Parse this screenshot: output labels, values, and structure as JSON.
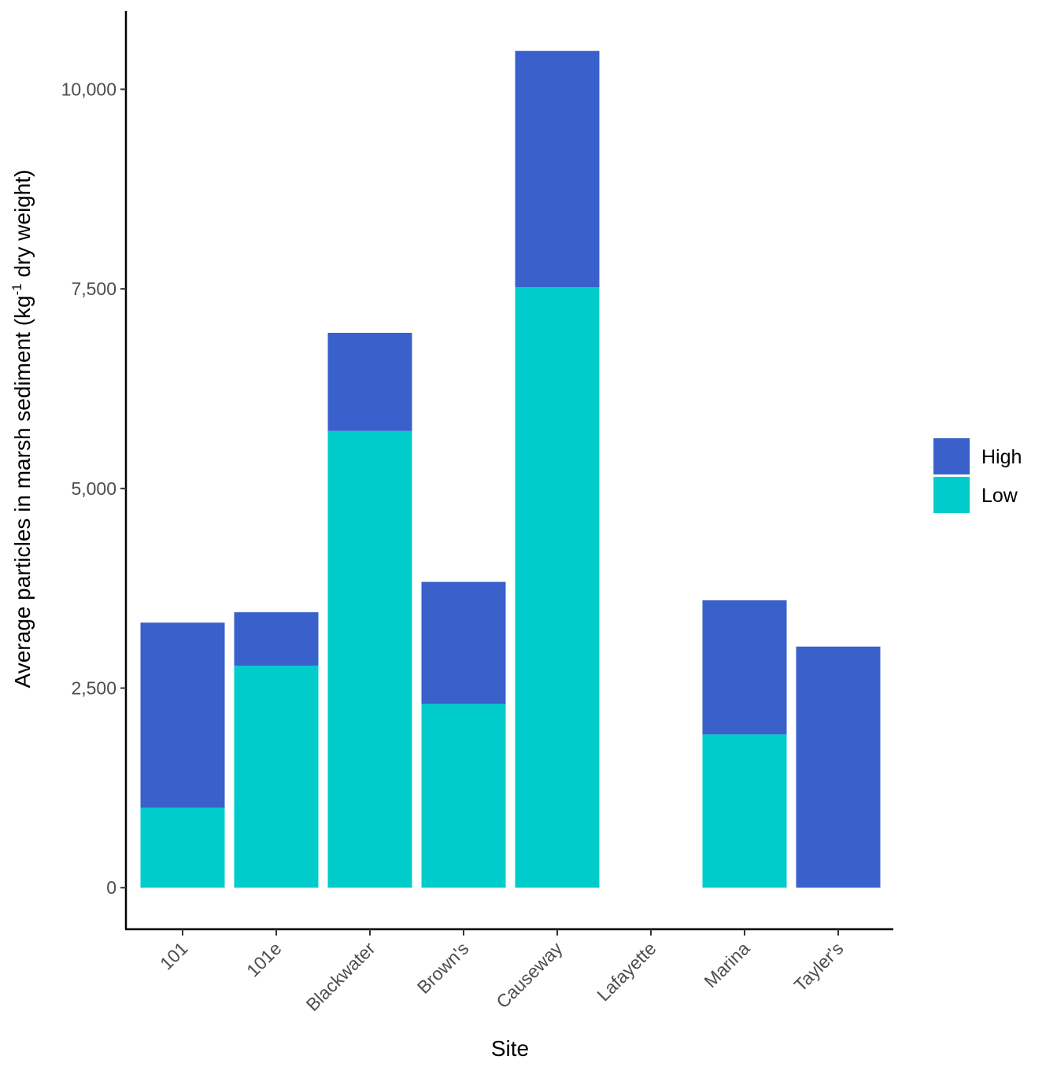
{
  "chart_data": {
    "type": "bar",
    "stacked": true,
    "categories": [
      "101",
      "101e",
      "Blackwater",
      "Brown's",
      "Causeway",
      "Lafayette",
      "Marina",
      "Tayler's"
    ],
    "series": [
      {
        "name": "Low",
        "color": "#00CCCC",
        "values": [
          1000,
          2780,
          5720,
          2300,
          7520,
          0,
          1920,
          0
        ]
      },
      {
        "name": "High",
        "color": "#3A60CC",
        "values": [
          2320,
          670,
          1230,
          1530,
          2960,
          0,
          1680,
          3020
        ]
      }
    ],
    "xlabel": "Site",
    "ylabel": "Average particles in marsh sediment (kg-1 dry weight)",
    "ylabel_parts": {
      "before": "Average particles in marsh sediment (kg",
      "sup": "-1",
      "after": " dry weight)"
    },
    "yticks": [
      0,
      2500,
      5000,
      7500,
      10000
    ],
    "ytick_labels": [
      "0",
      "2,500",
      "5,000",
      "7,500",
      "10,000"
    ],
    "ylim": [
      -520,
      10980
    ],
    "legend": {
      "position": "right",
      "entries": [
        "High",
        "Low"
      ]
    },
    "grid": false
  }
}
